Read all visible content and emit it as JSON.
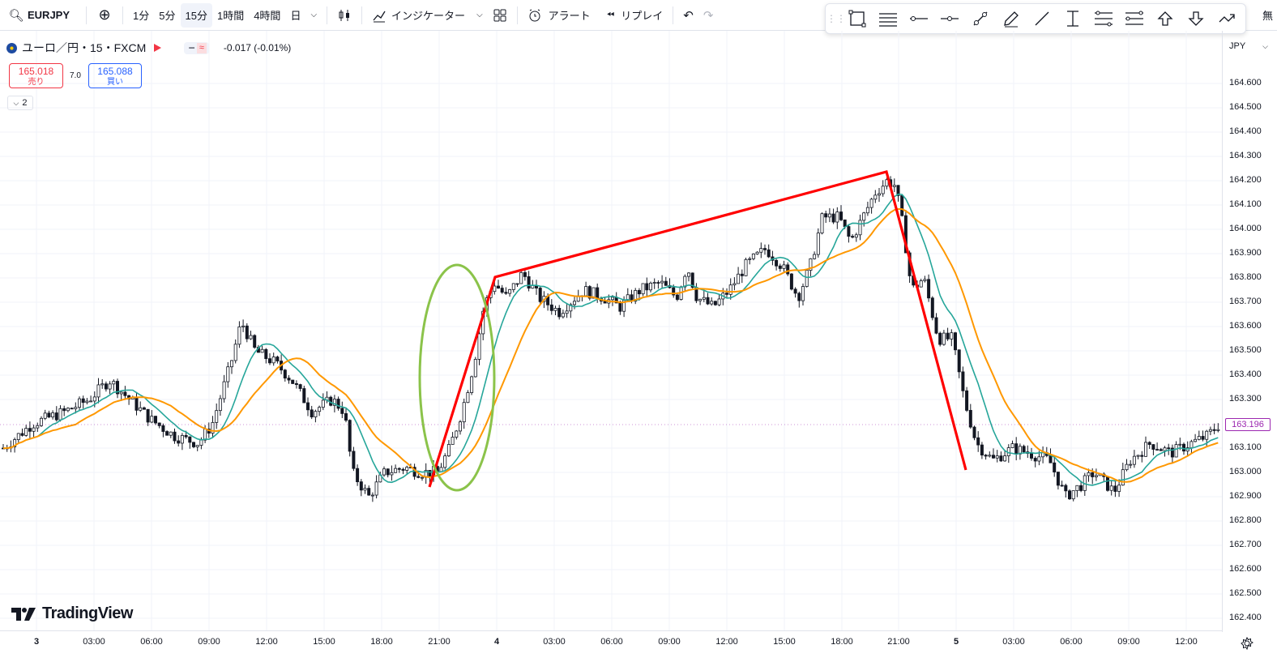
{
  "toolbar": {
    "symbol": "EURJPY",
    "intervals": [
      "1分",
      "5分",
      "15分",
      "1時間",
      "4時間",
      "日"
    ],
    "active_interval": "15分",
    "indicators_label": "インジケーター",
    "alert_label": "アラート",
    "replay_label": "リプレイ"
  },
  "legend": {
    "title": "ユーロ／円・15・FXCM",
    "change": "-0.017 (-0.01%)",
    "sell_price": "165.018",
    "sell_label": "売り",
    "spread": "7.0",
    "buy_price": "165.088",
    "buy_label": "買い",
    "collapse_count": "2"
  },
  "price_axis": {
    "currency": "JPY",
    "ticks": [
      "164.600",
      "164.500",
      "164.400",
      "164.300",
      "164.200",
      "164.100",
      "164.000",
      "163.900",
      "163.800",
      "163.700",
      "163.600",
      "163.500",
      "163.400",
      "163.300",
      "163.100",
      "163.000",
      "162.900",
      "162.800",
      "162.700",
      "162.600",
      "162.500",
      "162.400"
    ],
    "current_price": "163.196"
  },
  "time_axis": {
    "labels": [
      "3",
      "03:00",
      "06:00",
      "09:00",
      "12:00",
      "15:00",
      "18:00",
      "21:00",
      "4",
      "03:00",
      "06:00",
      "09:00",
      "12:00",
      "15:00",
      "18:00",
      "21:00",
      "5",
      "03:00",
      "06:00",
      "09:00",
      "12:00"
    ]
  },
  "watermark": "TradingView",
  "top_right_text": "無",
  "colors": {
    "up": "#131722",
    "down": "#131722",
    "ma_fast": "#26a69a",
    "ma_slow": "#ff9800",
    "annotation": "#ff0000",
    "ellipse": "#8bc34a",
    "price_label": "#9c27b0"
  },
  "chart_data": {
    "type": "candlestick",
    "symbol": "EURJPY",
    "timeframe": "15",
    "ylim": [
      162.4,
      164.67
    ],
    "series": [
      {
        "name": "price",
        "values_approx": [
          163.1,
          163.15,
          163.2,
          163.25,
          163.22,
          163.3,
          163.35,
          163.38,
          163.3,
          163.25,
          163.18,
          163.12,
          163.15,
          163.2,
          163.4,
          163.6,
          163.55,
          163.45,
          163.42,
          163.35,
          163.3,
          163.25,
          163.0,
          162.9,
          162.95,
          163.05,
          163.02,
          163.0,
          163.05,
          163.2,
          163.5,
          163.75,
          163.78,
          163.82,
          163.72,
          163.68,
          163.74,
          163.76,
          163.72,
          163.7,
          163.8,
          163.85,
          163.75,
          163.78,
          163.7,
          163.72,
          163.85,
          163.95,
          163.85,
          163.75,
          163.95,
          164.1,
          164.05,
          164.0,
          164.15,
          164.2,
          164.2,
          163.9,
          163.7,
          163.5,
          163.3,
          163.1,
          163.05,
          163.08,
          163.05,
          163.0,
          162.95,
          163.0,
          162.95,
          163.02,
          163.1,
          163.15,
          163.12,
          163.1,
          163.15,
          163.2
        ]
      }
    ]
  }
}
